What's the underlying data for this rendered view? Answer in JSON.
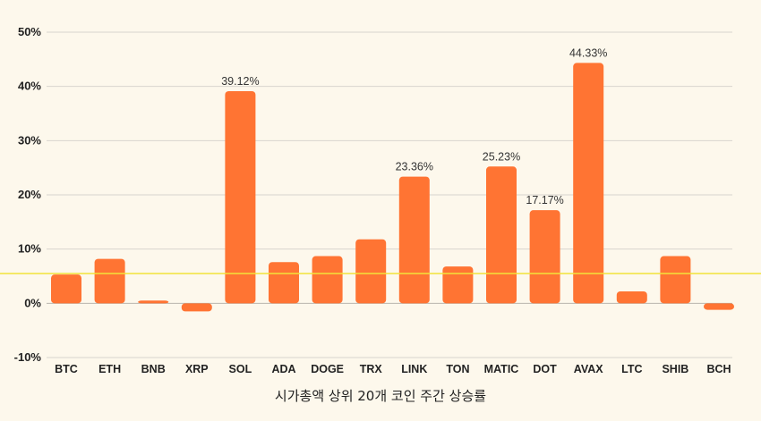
{
  "chart_data": {
    "type": "bar",
    "title": "",
    "xlabel": "시가총액 상위 20개 코인 주간 상승률",
    "ylabel": "",
    "categories": [
      "BTC",
      "ETH",
      "BNB",
      "XRP",
      "SOL",
      "ADA",
      "DOGE",
      "TRX",
      "LINK",
      "TON",
      "MATIC",
      "DOT",
      "AVAX",
      "LTC",
      "SHIB",
      "BCH"
    ],
    "values": [
      5.3,
      8.2,
      0.5,
      -1.5,
      39.12,
      7.6,
      8.7,
      11.8,
      23.36,
      6.8,
      25.23,
      17.17,
      44.33,
      2.2,
      8.7,
      -1.2
    ],
    "data_labels": [
      "",
      "",
      "",
      "",
      "39.12%",
      "",
      "",
      "",
      "23.36%",
      "",
      "25.23%",
      "17.17%",
      "44.33%",
      "",
      "",
      ""
    ],
    "ylim": [
      -10,
      50
    ],
    "yticks": [
      50,
      40,
      30,
      20,
      10,
      0,
      -10
    ],
    "ytick_labels": [
      "50%",
      "40%",
      "30%",
      "20%",
      "10%",
      "0%",
      "-10%"
    ],
    "reference_line": 5.5,
    "grid": true,
    "colors": {
      "bar": "#ff7433",
      "reference_line": "#f2e33a",
      "grid": "#d8d5ce",
      "background": "#fdf8ec"
    }
  }
}
